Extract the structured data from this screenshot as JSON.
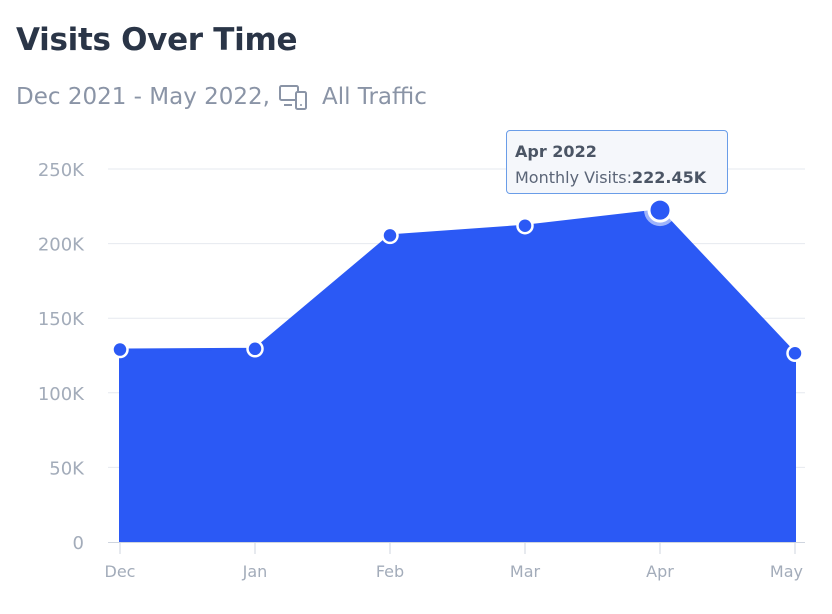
{
  "header": {
    "title": "Visits Over Time",
    "date_range": "Dec 2021 - May 2022,",
    "traffic_filter": "All Traffic",
    "filter_icon": "devices-icon"
  },
  "tooltip": {
    "title": "Apr 2022",
    "label": "Monthly Visits:",
    "value": "222.45K"
  },
  "colors": {
    "area": "#2b59f5",
    "grid": "#e6e9ef",
    "axis_text": "#a3acba"
  },
  "chart_data": {
    "type": "area",
    "categories": [
      "Dec",
      "Jan",
      "Feb",
      "Mar",
      "Apr",
      "May"
    ],
    "series": [
      {
        "name": "Monthly Visits",
        "values": [
          129000,
          129500,
          205500,
          212000,
          222450,
          126500
        ]
      }
    ],
    "y_ticks": [
      "0",
      "50K",
      "100K",
      "150K",
      "200K",
      "250K"
    ],
    "ylim": [
      0,
      250000
    ],
    "highlighted_index": 4,
    "grid": true,
    "legend": "none"
  }
}
